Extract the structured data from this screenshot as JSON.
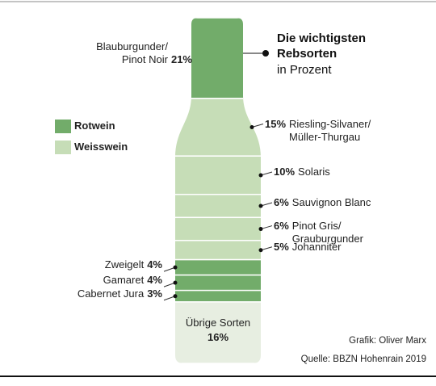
{
  "chart_data": {
    "type": "bottle",
    "title": "Die wichtigsten\nRebsorten",
    "subtitle": "in Prozent",
    "legend": [
      {
        "name": "Rotwein",
        "color": "#72ac6a"
      },
      {
        "name": "Weisswein",
        "color": "#c6ddb7"
      }
    ],
    "categories": [
      "Blauburgunder/\nPinot Noir",
      "Riesling-Silvaner/\nMüller-Thurgau",
      "Solaris",
      "Sauvignon Blanc",
      "Pinot Gris/\nGrauburgunder",
      "Johanniter",
      "Zweigelt",
      "Gamaret",
      "Cabernet Jura",
      "Übrige Sorten"
    ],
    "values": [
      21,
      15,
      10,
      6,
      6,
      5,
      4,
      4,
      3,
      16
    ],
    "value_labels": [
      "21%",
      "15%",
      "10%",
      "6%",
      "6%",
      "5%",
      "4%",
      "4%",
      "3%",
      "16%"
    ],
    "colors": [
      "#72ac6a",
      "#c6ddb7",
      "#c6ddb7",
      "#c6ddb7",
      "#c6ddb7",
      "#c6ddb7",
      "#72ac6a",
      "#72ac6a",
      "#72ac6a",
      "#e7eee1"
    ],
    "credits": [
      "Grafik: Oliver Marx",
      "Quelle: BBZN Hohenrain 2019"
    ]
  }
}
